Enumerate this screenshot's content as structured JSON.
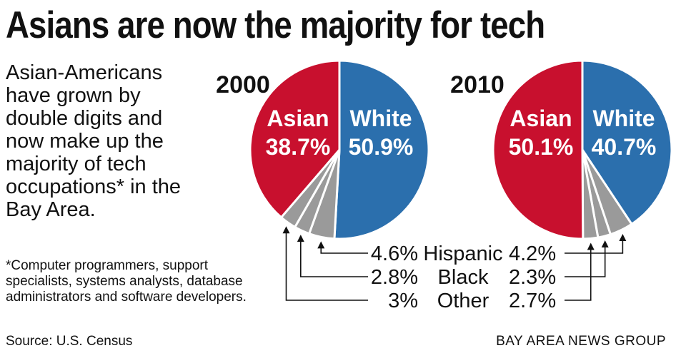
{
  "title": "Asians are now the majority for tech",
  "intro": "Asian-Americans have grown by double digits and now make up the majority of tech occupations* in the Bay Area.",
  "footnote": "*Computer programmers, support specialists, systems analysts, database administrators and software developers.",
  "source": "Source: U.S. Census",
  "credit": "BAY AREA NEWS GROUP",
  "colors": {
    "asian": "#c8102e",
    "white": "#2b6fad",
    "minor": "#9a9a9a",
    "text_on_slice": "#ffffff"
  },
  "chart_data": [
    {
      "type": "pie",
      "title": "2000",
      "slices": [
        {
          "label": "White",
          "value": 50.9,
          "display": "50.9%"
        },
        {
          "label": "Hispanic",
          "value": 4.6,
          "display": "4.6%"
        },
        {
          "label": "Black",
          "value": 2.8,
          "display": "2.8%"
        },
        {
          "label": "Other",
          "value": 3,
          "display": "3%"
        },
        {
          "label": "Asian",
          "value": 38.7,
          "display": "38.7%"
        }
      ]
    },
    {
      "type": "pie",
      "title": "2010",
      "slices": [
        {
          "label": "White",
          "value": 40.7,
          "display": "40.7%"
        },
        {
          "label": "Hispanic",
          "value": 4.2,
          "display": "4.2%"
        },
        {
          "label": "Black",
          "value": 2.3,
          "display": "2.3%"
        },
        {
          "label": "Other",
          "value": 2.7,
          "display": "2.7%"
        },
        {
          "label": "Asian",
          "value": 50.1,
          "display": "50.1%"
        }
      ]
    }
  ]
}
